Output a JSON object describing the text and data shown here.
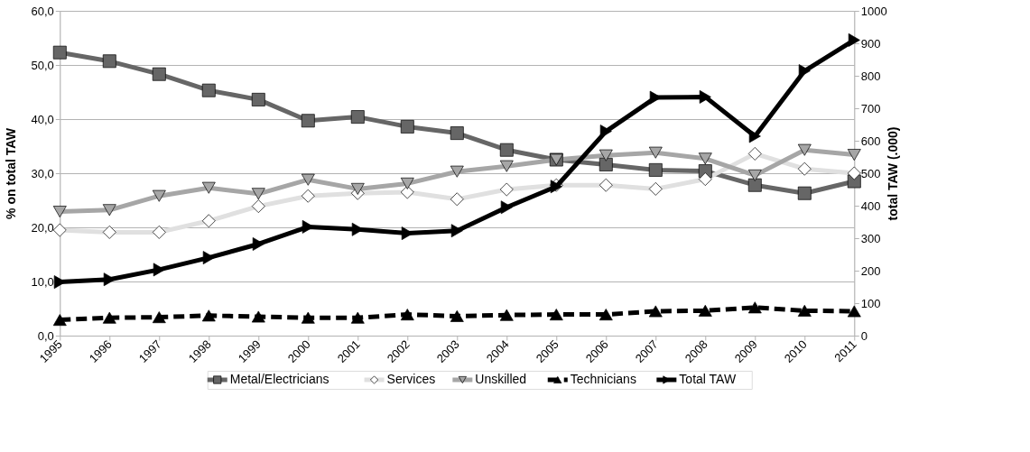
{
  "chart_data": {
    "type": "line",
    "categories": [
      "1995",
      "1996",
      "1997",
      "1998",
      "1999",
      "2000",
      "2001",
      "2002",
      "2003",
      "2004",
      "2005",
      "2006",
      "2007",
      "2008",
      "2009",
      "2010",
      "2011"
    ],
    "series": [
      {
        "name": "Metal/Electricians",
        "color": "#666666",
        "marker": "square",
        "values": [
          52.3,
          50.7,
          48.3,
          45.3,
          43.6,
          39.7,
          40.4,
          38.6,
          37.4,
          34.3,
          32.5,
          31.6,
          30.6,
          30.4,
          27.8,
          26.3,
          28.5
        ]
      },
      {
        "name": "Services",
        "color": "#e0e0e0",
        "marker": "diamond",
        "values": [
          19.5,
          19.1,
          19.1,
          21.2,
          23.9,
          25.8,
          26.3,
          26.5,
          25.2,
          27.0,
          27.8,
          27.8,
          27.1,
          28.9,
          33.6,
          30.8,
          30.0
        ]
      },
      {
        "name": "Unskilled",
        "color": "#a6a6a6",
        "marker": "triangle-down",
        "values": [
          22.9,
          23.2,
          25.8,
          27.3,
          26.2,
          28.8,
          27.1,
          28.1,
          30.3,
          31.3,
          32.5,
          33.3,
          33.8,
          32.7,
          29.6,
          34.3,
          33.4
        ]
      },
      {
        "name": "Technicians",
        "color": "#000000",
        "marker": "triangle-up",
        "line_style": "dashed",
        "values": [
          2.9,
          3.3,
          3.4,
          3.7,
          3.5,
          3.3,
          3.3,
          3.9,
          3.6,
          3.8,
          3.9,
          3.9,
          4.5,
          4.6,
          5.2,
          4.6,
          4.5
        ]
      },
      {
        "name": "Total TAW",
        "color": "#000000",
        "marker": "triangle-right",
        "axis": "y2",
        "values": [
          165,
          173,
          203,
          240,
          282,
          335,
          327,
          315,
          323,
          395,
          459,
          629,
          733,
          735,
          614,
          815,
          910
        ]
      }
    ],
    "ylabel": "% on total TAW",
    "y2label": "total TAW (.000)",
    "ylim": [
      0,
      60
    ],
    "yticks": [
      {
        "value": 0,
        "label": "0,0"
      },
      {
        "value": 10,
        "label": "10,0"
      },
      {
        "value": 20,
        "label": "20,0"
      },
      {
        "value": 30,
        "label": "30,0"
      },
      {
        "value": 40,
        "label": "40,0"
      },
      {
        "value": 50,
        "label": "50,0"
      },
      {
        "value": 60,
        "label": "60,0"
      }
    ],
    "y2lim": [
      0,
      1000
    ],
    "y2ticks": [
      0,
      100,
      200,
      300,
      400,
      500,
      600,
      700,
      800,
      900,
      {
        "value": 1000,
        "label": "1000"
      }
    ],
    "grid": "y",
    "legend": "bottom",
    "line_style": "solid"
  }
}
